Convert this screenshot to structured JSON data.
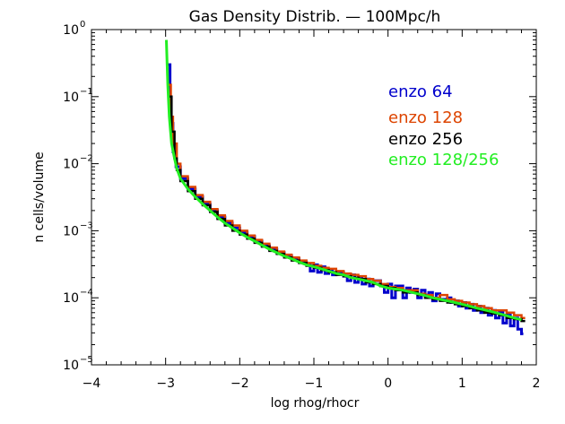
{
  "chart_data": {
    "type": "line",
    "title": "Gas Density Distrib. — 100Mpc/h",
    "xlabel": "log rhog/rhocr",
    "ylabel": "n cells/volume",
    "xlim": [
      -4,
      2
    ],
    "ylim": [
      1e-05,
      1
    ],
    "y_scale": "log",
    "x_ticks": [
      {
        "v": -4,
        "label": "−4"
      },
      {
        "v": -3,
        "label": "−3"
      },
      {
        "v": -2,
        "label": "−2"
      },
      {
        "v": -1,
        "label": "−1"
      },
      {
        "v": 0,
        "label": "0"
      },
      {
        "v": 1,
        "label": "1"
      },
      {
        "v": 2,
        "label": "2"
      }
    ],
    "y_ticks": [
      {
        "e": -5,
        "base": "10",
        "exp": "−5"
      },
      {
        "e": -4,
        "base": "10",
        "exp": "−4"
      },
      {
        "e": -3,
        "base": "10",
        "exp": "−3"
      },
      {
        "e": -2,
        "base": "10",
        "exp": "−2"
      },
      {
        "e": -1,
        "base": "10",
        "exp": "−1"
      },
      {
        "e": 0,
        "base": "10",
        "exp": "0"
      }
    ],
    "legend_position": "upper-right-inside",
    "grid": false,
    "series": [
      {
        "name": "enzo 64",
        "color": "#0000cc",
        "style": "step",
        "x": [
          -2.98,
          -2.94,
          -2.9,
          -2.86,
          -2.8,
          -2.7,
          -2.6,
          -2.5,
          -2.4,
          -2.3,
          -2.2,
          -2.1,
          -2.0,
          -1.9,
          -1.8,
          -1.7,
          -1.6,
          -1.5,
          -1.4,
          -1.3,
          -1.2,
          -1.1,
          -1.05,
          -1.0,
          -0.95,
          -0.9,
          -0.85,
          -0.8,
          -0.75,
          -0.7,
          -0.6,
          -0.55,
          -0.5,
          -0.45,
          -0.4,
          -0.35,
          -0.3,
          -0.25,
          -0.2,
          -0.1,
          -0.05,
          0.0,
          0.05,
          0.1,
          0.2,
          0.25,
          0.3,
          0.35,
          0.4,
          0.45,
          0.5,
          0.55,
          0.6,
          0.65,
          0.7,
          0.8,
          0.85,
          0.9,
          0.95,
          1.0,
          1.05,
          1.1,
          1.15,
          1.2,
          1.25,
          1.3,
          1.35,
          1.4,
          1.45,
          1.5,
          1.55,
          1.6,
          1.65,
          1.7,
          1.75,
          1.8
        ],
        "y": [
          0.3,
          0.04,
          0.015,
          0.009,
          0.006,
          0.0042,
          0.0032,
          0.0025,
          0.002,
          0.0016,
          0.0013,
          0.0011,
          0.00095,
          0.00082,
          0.0007,
          0.0006,
          0.00053,
          0.00047,
          0.00042,
          0.00038,
          0.00034,
          0.00032,
          0.00025,
          0.00031,
          0.00024,
          0.00029,
          0.00023,
          0.00026,
          0.00022,
          0.00024,
          0.00021,
          0.00018,
          0.00022,
          0.00017,
          0.0002,
          0.00016,
          0.00019,
          0.00015,
          0.00018,
          0.00015,
          0.00012,
          0.00016,
          0.0001,
          0.00015,
          0.0001,
          0.00014,
          0.00012,
          0.000135,
          0.0001,
          0.00013,
          0.00011,
          0.00012,
          9e-05,
          0.000115,
          9.5e-05,
          0.0001,
          8.5e-05,
          9e-05,
          7.5e-05,
          8.5e-05,
          7e-05,
          8e-05,
          6.5e-05,
          7.5e-05,
          6e-05,
          7e-05,
          5.5e-05,
          6.5e-05,
          5e-05,
          6e-05,
          4.2e-05,
          5.5e-05,
          3.8e-05,
          5e-05,
          3.4e-05,
          2.9e-05
        ]
      },
      {
        "name": "enzo 128",
        "color": "#dd4400",
        "style": "step",
        "x": [
          -2.97,
          -2.93,
          -2.9,
          -2.85,
          -2.8,
          -2.7,
          -2.6,
          -2.5,
          -2.4,
          -2.3,
          -2.2,
          -2.1,
          -2.0,
          -1.9,
          -1.8,
          -1.7,
          -1.6,
          -1.5,
          -1.4,
          -1.3,
          -1.2,
          -1.1,
          -1.0,
          -0.9,
          -0.8,
          -0.7,
          -0.6,
          -0.5,
          -0.4,
          -0.3,
          -0.2,
          -0.1,
          0.0,
          0.1,
          0.2,
          0.3,
          0.4,
          0.5,
          0.6,
          0.7,
          0.8,
          0.9,
          1.0,
          1.1,
          1.2,
          1.3,
          1.4,
          1.5,
          1.6,
          1.7,
          1.8
        ],
        "y": [
          0.15,
          0.05,
          0.02,
          0.01,
          0.0065,
          0.0045,
          0.0034,
          0.0027,
          0.0021,
          0.0017,
          0.0014,
          0.0012,
          0.001,
          0.00085,
          0.00073,
          0.00064,
          0.00056,
          0.00049,
          0.00044,
          0.0004,
          0.00036,
          0.00033,
          0.0003,
          0.00028,
          0.00027,
          0.00025,
          0.00023,
          0.00022,
          0.00021,
          0.00019,
          0.00018,
          0.00016,
          0.000145,
          0.00014,
          0.00013,
          0.00013,
          0.000115,
          0.00011,
          0.0001,
          0.00011,
          9.5e-05,
          9e-05,
          8.5e-05,
          8e-05,
          7.5e-05,
          7e-05,
          6.5e-05,
          6.5e-05,
          6e-05,
          5.5e-05,
          5e-05
        ]
      },
      {
        "name": "enzo 256",
        "color": "#000000",
        "style": "step",
        "x": [
          -2.95,
          -2.92,
          -2.88,
          -2.85,
          -2.8,
          -2.7,
          -2.6,
          -2.5,
          -2.4,
          -2.3,
          -2.2,
          -2.1,
          -2.0,
          -1.9,
          -1.8,
          -1.7,
          -1.6,
          -1.5,
          -1.4,
          -1.3,
          -1.2,
          -1.1,
          -1.0,
          -0.9,
          -0.8,
          -0.7,
          -0.6,
          -0.5,
          -0.4,
          -0.3,
          -0.2,
          -0.1,
          0.0,
          0.1,
          0.2,
          0.3,
          0.4,
          0.5,
          0.6,
          0.7,
          0.8,
          0.9,
          1.0,
          1.1,
          1.2,
          1.3,
          1.4,
          1.5,
          1.6,
          1.7,
          1.8
        ],
        "y": [
          0.1,
          0.03,
          0.012,
          0.008,
          0.0055,
          0.0039,
          0.003,
          0.0024,
          0.0019,
          0.0015,
          0.0012,
          0.001,
          0.00088,
          0.00076,
          0.00066,
          0.00058,
          0.0005,
          0.00045,
          0.0004,
          0.00036,
          0.00033,
          0.0003,
          0.00028,
          0.00026,
          0.00024,
          0.00022,
          0.00021,
          0.0002,
          0.00019,
          0.00017,
          0.00016,
          0.00015,
          0.00014,
          0.00013,
          0.00012,
          0.00012,
          0.00011,
          0.0001,
          9.5e-05,
          9e-05,
          8.5e-05,
          8e-05,
          7.5e-05,
          7e-05,
          6.5e-05,
          6e-05,
          5.8e-05,
          5.5e-05,
          5e-05,
          4.8e-05,
          4.5e-05
        ]
      },
      {
        "name": "enzo 128/256",
        "color": "#22ee22",
        "style": "line",
        "x": [
          -2.99,
          -2.97,
          -2.95,
          -2.92,
          -2.88,
          -2.85,
          -2.8,
          -2.7,
          -2.6,
          -2.5,
          -2.4,
          -2.3,
          -2.2,
          -2.1,
          -2.0,
          -1.9,
          -1.8,
          -1.7,
          -1.6,
          -1.5,
          -1.4,
          -1.3,
          -1.2,
          -1.1,
          -1.0,
          -0.9,
          -0.8,
          -0.7,
          -0.6,
          -0.5,
          -0.4,
          -0.3,
          -0.2,
          -0.1,
          0.0,
          0.1,
          0.2,
          0.3,
          0.4,
          0.5,
          0.6,
          0.7,
          0.8,
          0.9,
          1.0,
          1.1,
          1.2,
          1.3,
          1.4,
          1.5,
          1.6,
          1.7,
          1.8
        ],
        "y": [
          0.7,
          0.15,
          0.05,
          0.02,
          0.012,
          0.0085,
          0.006,
          0.0042,
          0.0032,
          0.0025,
          0.002,
          0.0016,
          0.0013,
          0.0011,
          0.00093,
          0.0008,
          0.0007,
          0.00061,
          0.00053,
          0.00047,
          0.00042,
          0.00038,
          0.00034,
          0.00031,
          0.00029,
          0.00027,
          0.00025,
          0.00023,
          0.00022,
          0.0002,
          0.00019,
          0.00018,
          0.00017,
          0.00015,
          0.00014,
          0.000135,
          0.00013,
          0.000122,
          0.000115,
          0.000108,
          0.0001,
          9.5e-05,
          9e-05,
          8.5e-05,
          8e-05,
          7.5e-05,
          7e-05,
          6.6e-05,
          6.2e-05,
          5.8e-05,
          5.4e-05,
          5e-05,
          4.7e-05
        ]
      }
    ]
  }
}
